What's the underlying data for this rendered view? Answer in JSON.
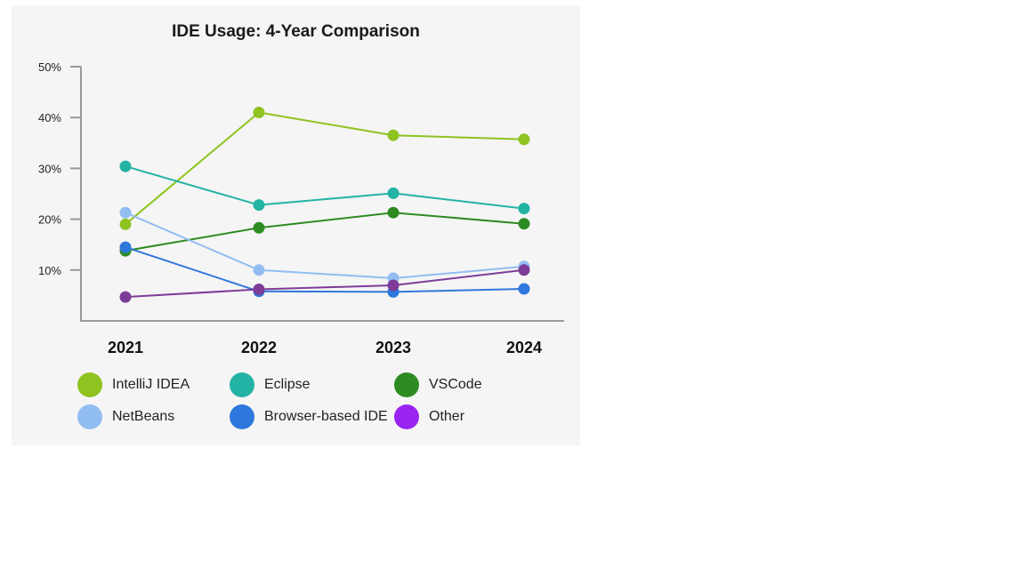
{
  "chart_data": {
    "type": "line",
    "title": "IDE Usage: 4-Year Comparison",
    "x": [
      "2021",
      "2022",
      "2023",
      "2024"
    ],
    "y_ticks": [
      "10%",
      "20%",
      "30%",
      "40%",
      "50%"
    ],
    "ylim": [
      0,
      50
    ],
    "grid": false,
    "legend_position": "bottom",
    "series": [
      {
        "name": "IntelliJ IDEA",
        "color": "#8fc321",
        "values": [
          19,
          41,
          36.5,
          35.7
        ]
      },
      {
        "name": "Eclipse",
        "color": "#23b3a4",
        "values": [
          30.4,
          22.8,
          25.1,
          22.1
        ]
      },
      {
        "name": "VSCode",
        "color": "#2e8b22",
        "values": [
          13.8,
          18.3,
          21.3,
          19.1
        ]
      },
      {
        "name": "NetBeans",
        "color": "#92bdf2",
        "values": [
          21.3,
          10,
          8.4,
          10.7
        ]
      },
      {
        "name": "Browser-based IDE",
        "color": "#2e77dc",
        "values": [
          14.5,
          5.8,
          5.7,
          6.3
        ]
      },
      {
        "name": "Other",
        "color": "#7d3c98",
        "values": [
          4.7,
          6.2,
          7,
          10
        ]
      }
    ],
    "legend_colors": [
      "#8fc321",
      "#23b3a4",
      "#2e8b22",
      "#92bdf2",
      "#2e77dc",
      "#9a24f0"
    ]
  }
}
